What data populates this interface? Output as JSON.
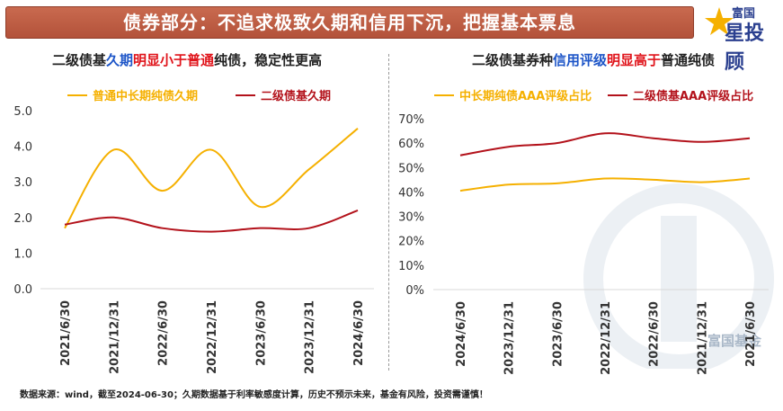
{
  "banner": {
    "title": "债券部分：不追求极致久期和信用下沉，把握基本票息"
  },
  "logo": {
    "top_text": "富国",
    "main_text": "星投顾"
  },
  "left_title": {
    "p1": "二级债基",
    "p2": "久期",
    "p3": "明显小于",
    "p4": "普通",
    "p5": "纯债，稳定性更高"
  },
  "right_title": {
    "p1": "二级债基券种",
    "p2": "信用评级",
    "p3": "明显高于",
    "p4": "普通纯债"
  },
  "footnote": "数据来源：wind，截至2024-06-30；久期数据基于利率敏感度计算，历史不预示未来，基金有风险，投资需谨慎！",
  "watermark_text": "富国基金",
  "colors": {
    "orange": "#f5b000",
    "darkred": "#b3121b",
    "axis": "#d9d9d9",
    "tick_text": "#333333"
  },
  "chart_data": [
    {
      "type": "line",
      "title": "二级债基久期明显小于普通纯债，稳定性更高",
      "categories": [
        "2021/6/30",
        "2021/12/31",
        "2022/6/30",
        "2022/12/31",
        "2023/6/30",
        "2023/12/31",
        "2024/6/30"
      ],
      "series": [
        {
          "name": "普通中长期纯债久期",
          "values": [
            1.7,
            3.9,
            2.75,
            3.9,
            2.3,
            3.35,
            4.5
          ]
        },
        {
          "name": "二级债基久期",
          "values": [
            1.8,
            2.0,
            1.7,
            1.6,
            1.7,
            1.7,
            2.2
          ]
        }
      ],
      "yticks": [
        "0.0",
        "1.0",
        "2.0",
        "3.0",
        "4.0",
        "5.0"
      ],
      "ylim": [
        0,
        5
      ],
      "legend": "top"
    },
    {
      "type": "line",
      "title": "二级债基券种信用评级明显高于普通纯债",
      "categories": [
        "2024/6/30",
        "2023/12/31",
        "2023/6/30",
        "2022/12/31",
        "2022/6/30",
        "2021/12/31",
        "2021/6/30"
      ],
      "series": [
        {
          "name": "中长期纯债AAA评级占比",
          "values": [
            40.5,
            43,
            43.5,
            45.5,
            45,
            44,
            45.5
          ]
        },
        {
          "name": "二级债基AAA评级占比",
          "values": [
            55,
            58.5,
            60,
            64,
            62,
            60.5,
            62
          ]
        }
      ],
      "yticks": [
        "0%",
        "10%",
        "20%",
        "30%",
        "40%",
        "50%",
        "60%",
        "70%"
      ],
      "ylim": [
        0,
        70
      ],
      "legend": "top"
    }
  ]
}
